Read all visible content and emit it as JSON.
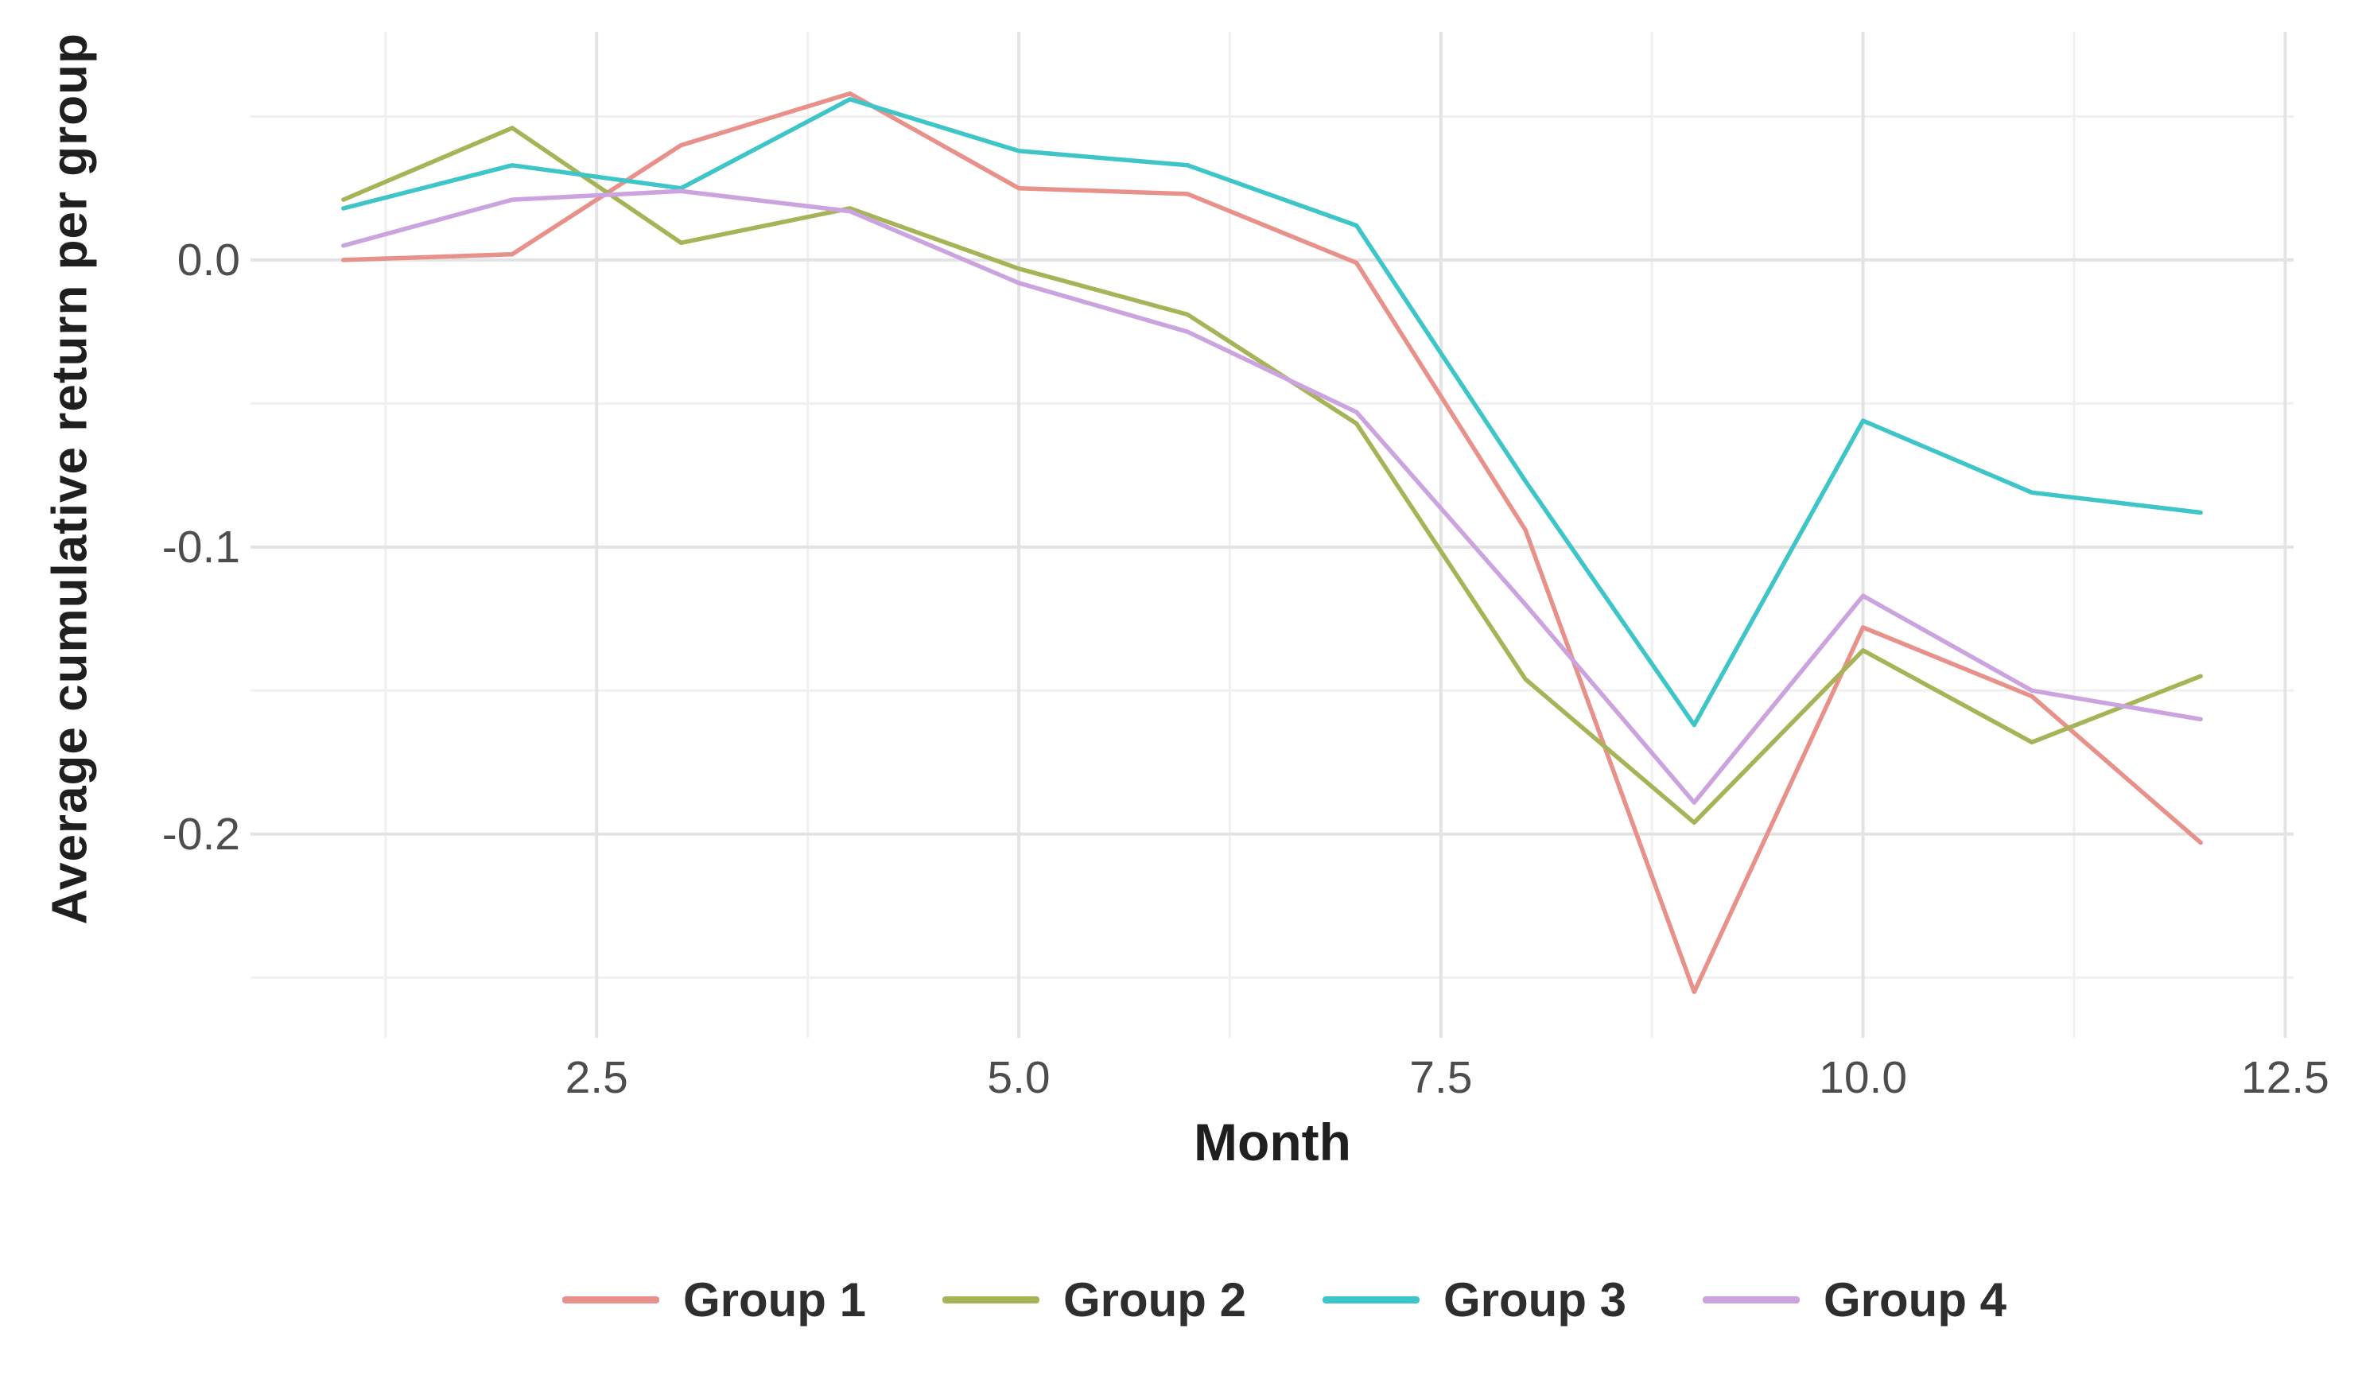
{
  "chart_data": {
    "type": "line",
    "title": "",
    "xlabel": "Month",
    "ylabel": "Average cumulative return per group",
    "x": [
      1,
      2,
      3,
      4,
      5,
      6,
      7,
      8,
      9,
      10,
      11,
      12
    ],
    "series": [
      {
        "name": "Group 1",
        "color": "#e8908a",
        "values": [
          0.0,
          0.002,
          0.04,
          0.058,
          0.025,
          0.023,
          -0.001,
          -0.094,
          -0.255,
          -0.128,
          -0.152,
          -0.203
        ]
      },
      {
        "name": "Group 2",
        "color": "#a6b457",
        "values": [
          0.021,
          0.046,
          0.006,
          0.018,
          -0.003,
          -0.019,
          -0.057,
          -0.146,
          -0.196,
          -0.136,
          -0.168,
          -0.145
        ]
      },
      {
        "name": "Group 3",
        "color": "#3ec5c8",
        "values": [
          0.018,
          0.033,
          0.025,
          0.056,
          0.038,
          0.033,
          0.012,
          -0.077,
          -0.162,
          -0.056,
          -0.081,
          -0.088
        ]
      },
      {
        "name": "Group 4",
        "color": "#cba3de",
        "values": [
          0.005,
          0.021,
          0.024,
          0.017,
          -0.008,
          -0.025,
          -0.053,
          -0.12,
          -0.189,
          -0.117,
          -0.15,
          -0.16
        ]
      }
    ],
    "x_ticks": [
      "2.5",
      "5.0",
      "7.5",
      "10.0",
      "12.5"
    ],
    "x_tick_values": [
      2.5,
      5.0,
      7.5,
      10.0,
      12.5
    ],
    "y_ticks": [
      "0.0",
      "-0.1",
      "-0.2"
    ],
    "y_tick_values": [
      0.0,
      -0.1,
      -0.2
    ],
    "x_minor_gridlines": [
      1.25,
      3.75,
      6.25,
      8.75,
      11.25
    ],
    "y_minor_gridlines": [
      0.05,
      -0.05,
      -0.15,
      -0.25
    ],
    "xlim": [
      0.45,
      12.55
    ],
    "ylim": [
      -0.271,
      0.0795
    ],
    "grid": "major+minor",
    "legend_position": "bottom"
  },
  "colors": {
    "background": "#ffffff",
    "grid_major": "#e3e3e3",
    "grid_minor": "#f0f0f0",
    "tick_label": "#4d4d4d",
    "axis_title": "#1f1f1f",
    "legend_label": "#2e2e2e"
  }
}
